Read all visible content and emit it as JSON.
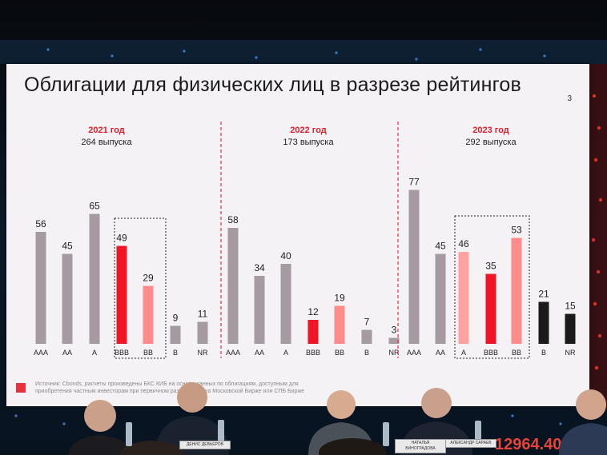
{
  "slide": {
    "title": "Облигации для физических лиц в разрезе рейтингов",
    "page_number": "3",
    "source_note": "Источник: Cbonds, расчеты произведены БКС КИБ на основе данных по облигациям, доступным для приобретения частным инвесторам при первичном размещении на Московской Бирже или СПБ Бирже",
    "accent_color": "#e8303e"
  },
  "chart_data": {
    "type": "bar",
    "groups": [
      {
        "year_label": "2021 год",
        "count_label": "264 выпуска",
        "bars": [
          {
            "category": "AAA",
            "value": 56,
            "color": "#a59aa2"
          },
          {
            "category": "AA",
            "value": 45,
            "color": "#a59aa2"
          },
          {
            "category": "A",
            "value": 65,
            "color": "#a59aa2"
          },
          {
            "category": "BBB",
            "value": 49,
            "color": "#f01525",
            "highlight": true
          },
          {
            "category": "BB",
            "value": 29,
            "color": "#ff8b8b",
            "highlight": true
          },
          {
            "category": "B",
            "value": 9,
            "color": "#a59aa2"
          },
          {
            "category": "NR",
            "value": 11,
            "color": "#a59aa2"
          }
        ]
      },
      {
        "year_label": "2022 год",
        "count_label": "173 выпуска",
        "bars": [
          {
            "category": "AAA",
            "value": 58,
            "color": "#a59aa2"
          },
          {
            "category": "AA",
            "value": 34,
            "color": "#a59aa2"
          },
          {
            "category": "A",
            "value": 40,
            "color": "#a59aa2"
          },
          {
            "category": "BBB",
            "value": 12,
            "color": "#f01525"
          },
          {
            "category": "BB",
            "value": 19,
            "color": "#ff8b8b"
          },
          {
            "category": "B",
            "value": 7,
            "color": "#a59aa2"
          },
          {
            "category": "NR",
            "value": 3,
            "color": "#a59aa2"
          }
        ]
      },
      {
        "year_label": "2023 год",
        "count_label": "292 выпуска",
        "bars": [
          {
            "category": "AAA",
            "value": 77,
            "color": "#a59aa2"
          },
          {
            "category": "AA",
            "value": 45,
            "color": "#a59aa2"
          },
          {
            "category": "A",
            "value": 46,
            "color": "#ffa2a2",
            "highlight": true
          },
          {
            "category": "BBB",
            "value": 35,
            "color": "#f01525",
            "highlight": true
          },
          {
            "category": "BB",
            "value": 53,
            "color": "#ff8b8b",
            "highlight": true
          },
          {
            "category": "B",
            "value": 21,
            "color": "#1b1b1b"
          },
          {
            "category": "NR",
            "value": 15,
            "color": "#1b1b1b"
          }
        ]
      }
    ],
    "ylim": [
      0,
      80
    ],
    "grid": false,
    "legend": "none"
  },
  "panel": {
    "name_cards": [
      "ДЕНИС ДЕВЬЕРОВ",
      "НАТАЛЬЯ ВИНОГРАДОВА",
      "АЛЕКСАНДР САРАЕВ"
    ]
  },
  "backdrop": {
    "ticker_text": "12964.40"
  }
}
